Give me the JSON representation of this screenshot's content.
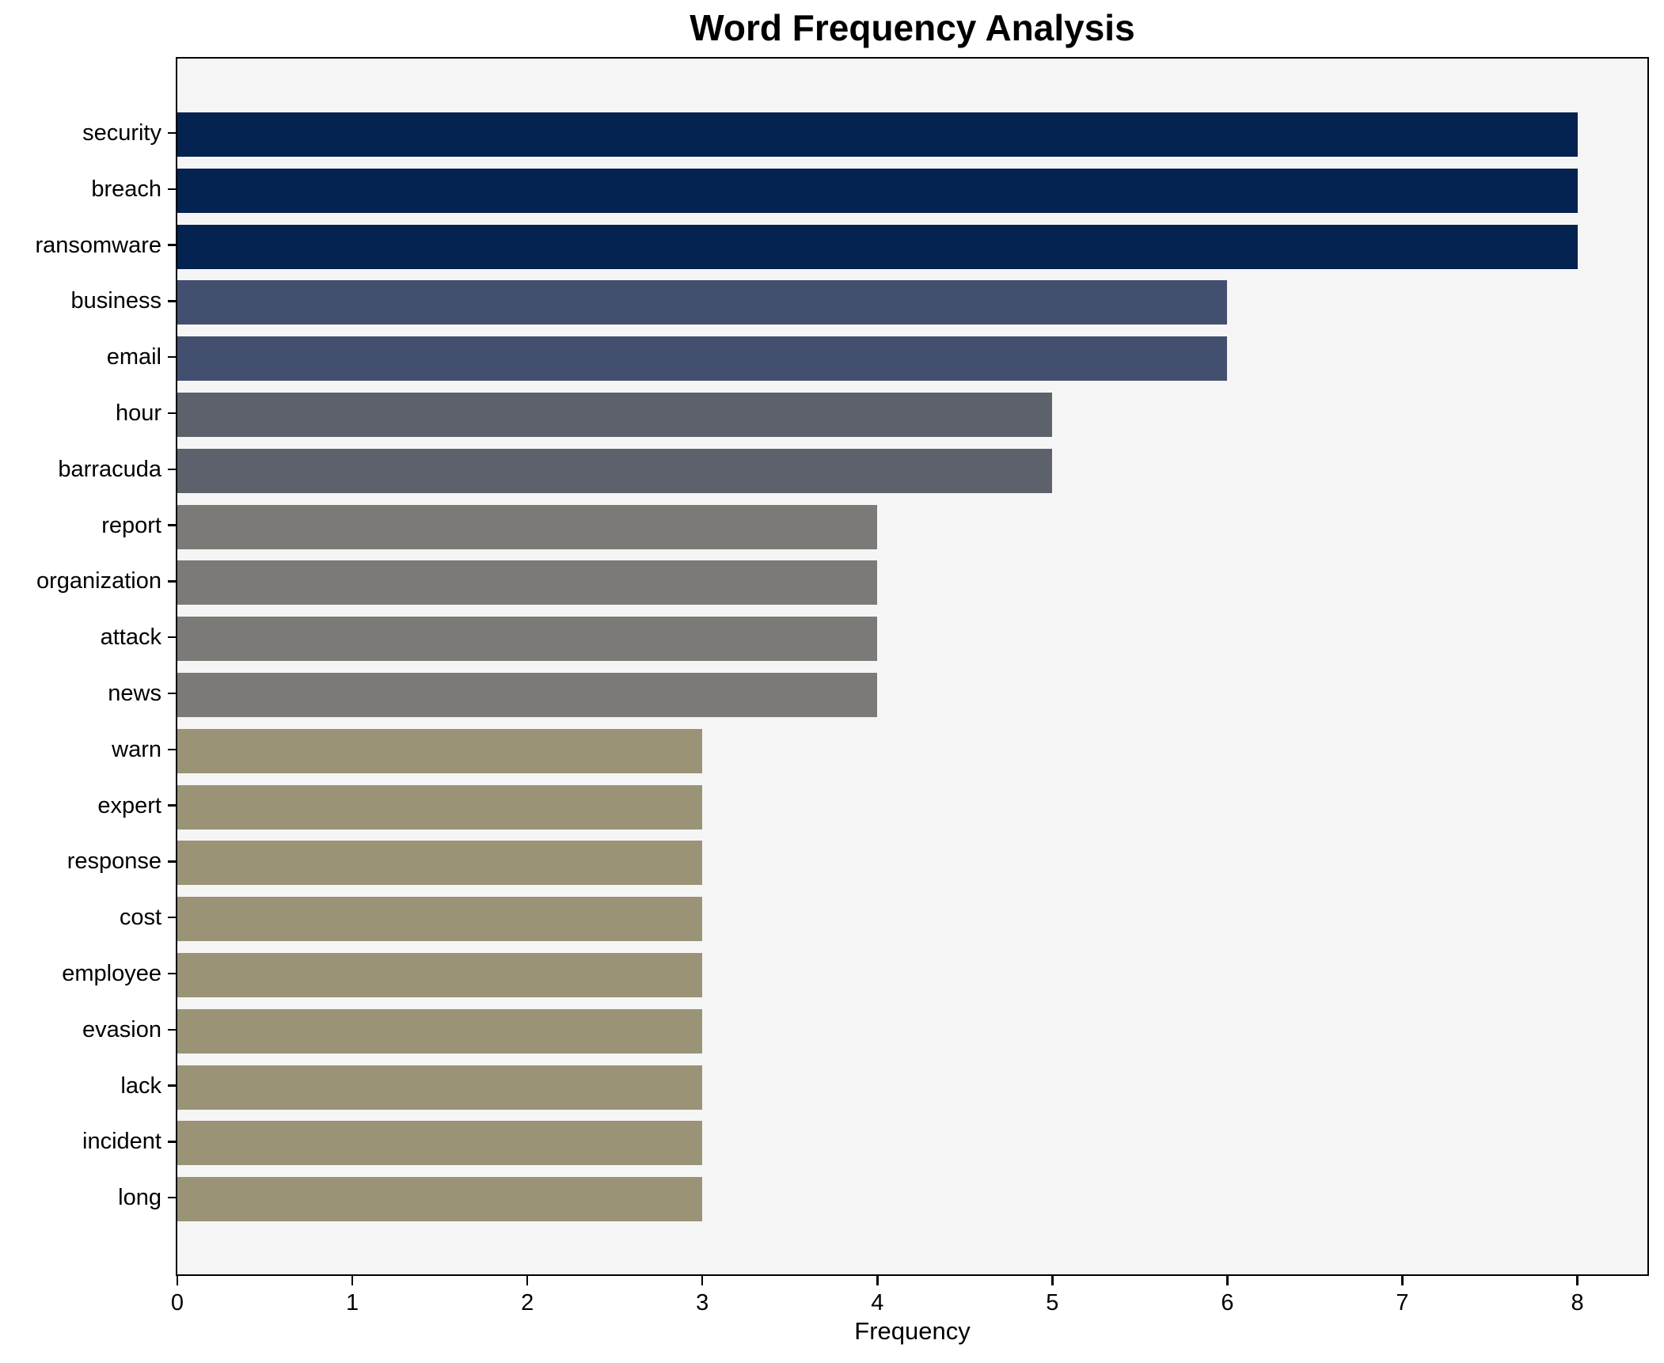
{
  "chart_data": {
    "type": "bar",
    "orientation": "horizontal",
    "title": "Word Frequency Analysis",
    "xlabel": "Frequency",
    "ylabel": "",
    "categories": [
      "security",
      "breach",
      "ransomware",
      "business",
      "email",
      "hour",
      "barracuda",
      "report",
      "organization",
      "attack",
      "news",
      "warn",
      "expert",
      "response",
      "cost",
      "employee",
      "evasion",
      "lack",
      "incident",
      "long"
    ],
    "values": [
      8,
      8,
      8,
      6,
      6,
      5,
      5,
      4,
      4,
      4,
      4,
      3,
      3,
      3,
      3,
      3,
      3,
      3,
      3,
      3
    ],
    "bar_colors": [
      "#052350",
      "#052350",
      "#052350",
      "#434f6e",
      "#434f6e",
      "#5d616c",
      "#5d616c",
      "#7b7a77",
      "#7b7a77",
      "#7b7a77",
      "#7b7a77",
      "#9a9376",
      "#9a9376",
      "#9a9376",
      "#9a9376",
      "#9a9376",
      "#9a9376",
      "#9a9376",
      "#9a9376",
      "#9a9376"
    ],
    "xticks": [
      0,
      1,
      2,
      3,
      4,
      5,
      6,
      7,
      8
    ],
    "xlim": [
      0,
      8.4
    ],
    "grid": false,
    "legend": null,
    "plot_background": "#f6f5f6",
    "figure_background": "#ffffff",
    "axis_color": "#000000"
  }
}
